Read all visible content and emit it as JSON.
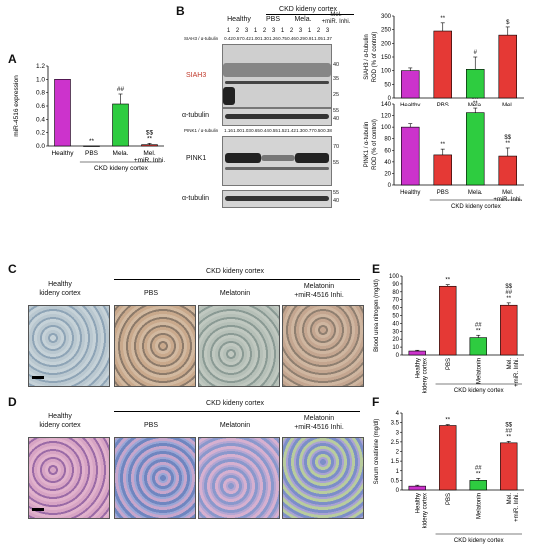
{
  "panel_labels": {
    "A": "A",
    "B": "B",
    "C": "C",
    "D": "D",
    "E": "E",
    "F": "F"
  },
  "chart_data": [
    {
      "id": "A",
      "type": "bar",
      "categories": [
        "Healthy",
        "PBS",
        "Mela.",
        "Mel.\n+miR. Inhi."
      ],
      "values": [
        1.0,
        0.0,
        0.63,
        0.02
      ],
      "errors": [
        0,
        0,
        0.15,
        0.02
      ],
      "colors": [
        "#cc33cc",
        "#e53935",
        "#2ecc40",
        "#e53935"
      ],
      "ylabel": "miR-4516 expression",
      "yticks": [
        "0.0",
        "0.2",
        "0.4",
        "0.6",
        "0.8",
        "1.0",
        "1.2"
      ],
      "ylim": [
        0,
        1.2
      ],
      "annotations": [
        "",
        "**",
        "##",
        "$$\n**"
      ],
      "group_label": "CKD kideny cortex"
    },
    {
      "id": "B1",
      "type": "bar",
      "categories": [
        "Healthy",
        "PBS",
        "Mela.",
        "Mel.\n+miR. Inhi."
      ],
      "values": [
        100,
        245,
        105,
        230
      ],
      "errors": [
        10,
        30,
        45,
        30
      ],
      "colors": [
        "#cc33cc",
        "#e53935",
        "#2ecc40",
        "#e53935"
      ],
      "ylabel": "SIAH3 / α-tubulin\nROD (% of control)",
      "yticks": [
        "0",
        "50",
        "100",
        "150",
        "200",
        "250",
        "300"
      ],
      "ylim": [
        0,
        300
      ],
      "annotations": [
        "",
        "**",
        "#",
        "$"
      ]
    },
    {
      "id": "B2",
      "type": "bar",
      "categories": [
        "Healthy",
        "PBS",
        "Mela.",
        "Mel.\n+miR. Inhi."
      ],
      "values": [
        100,
        52,
        125,
        50
      ],
      "errors": [
        6,
        10,
        8,
        14
      ],
      "colors": [
        "#cc33cc",
        "#e53935",
        "#2ecc40",
        "#e53935"
      ],
      "ylabel": "PINK1 / α-tubulin\nROD (% of control)",
      "yticks": [
        "0",
        "20",
        "40",
        "60",
        "80",
        "100",
        "120",
        "140"
      ],
      "ylim": [
        0,
        140
      ],
      "annotations": [
        "",
        "**",
        "##\n**",
        "$$\n**"
      ],
      "group_label": "CKD kideny cortex"
    },
    {
      "id": "E",
      "type": "bar",
      "categories": [
        "Healthy\nkideny cortex",
        "PBS",
        "Melatonin",
        "Mel.\n+miR. Inhi."
      ],
      "values": [
        5,
        87,
        22,
        63
      ],
      "errors": [
        1,
        2,
        3,
        3
      ],
      "colors": [
        "#cc33cc",
        "#e53935",
        "#2ecc40",
        "#e53935"
      ],
      "ylabel": "Blood urea nitrogen (mg/dl)",
      "yticks": [
        "0",
        "10",
        "20",
        "30",
        "40",
        "50",
        "60",
        "70",
        "80",
        "90",
        "100"
      ],
      "ylim": [
        0,
        100
      ],
      "annotations": [
        "",
        "**",
        "##\n**",
        "$$\n##\n**"
      ],
      "group_label": "CKD kideny cortex"
    },
    {
      "id": "F",
      "type": "bar",
      "categories": [
        "Healthy\nkideny cortex",
        "PBS",
        "Melatonin",
        "Mel.\n+miR. Inhi."
      ],
      "values": [
        0.2,
        3.35,
        0.5,
        2.45
      ],
      "errors": [
        0.05,
        0.05,
        0.1,
        0.08
      ],
      "colors": [
        "#cc33cc",
        "#e53935",
        "#2ecc40",
        "#e53935"
      ],
      "ylabel": "Serum creatinine (mg/dl)",
      "yticks": [
        "0",
        "0.5",
        "1",
        "1.5",
        "2",
        "2.5",
        "3",
        "3.5",
        "4"
      ],
      "ylim": [
        0,
        4
      ],
      "annotations": [
        "",
        "**",
        "##\n**",
        "$$\n##\n**"
      ],
      "group_label": "CKD kideny cortex"
    }
  ],
  "blot": {
    "header_groups": [
      "Healthy",
      "PBS",
      "Mela.",
      "Mel.\n+miR. Inhi."
    ],
    "header_title": "CKD kideny cortex",
    "lane_numbers": [
      "1",
      "2",
      "3",
      "1",
      "2",
      "3",
      "1",
      "2",
      "3",
      "1",
      "2",
      "3"
    ],
    "siah3_label": "SIAH3 / α-tubulin",
    "siah3_ratios": [
      "0.42",
      "0.57",
      "0.42",
      "1.00",
      "1.30",
      "1.26",
      "0.75",
      "0.46",
      "0.29",
      "0.91",
      "1.05",
      "1.37"
    ],
    "pink1_label": "PINK1 / α-tubulin",
    "pink1_ratios": [
      "1.16",
      "1.00",
      "1.03",
      "0.65",
      "0.44",
      "0.55",
      "1.52",
      "1.42",
      "1.30",
      "0.77",
      "0.50",
      "0.38"
    ],
    "rows": [
      "SIAH3",
      "α-tubulin",
      "PINK1",
      "α-tubulin"
    ],
    "mw_siah3": [
      "40",
      "35",
      "25"
    ],
    "mw_tub": [
      "55",
      "40"
    ],
    "mw_pink1": [
      "70",
      "55"
    ],
    "mw_tub2": [
      "55",
      "40"
    ]
  },
  "histology": {
    "group_left": "Healthy\nkideny cortex",
    "title": "CKD kideny cortex",
    "groups": [
      "PBS",
      "Melatonin",
      "Melatonin\n+miR-4516 Inhi."
    ]
  }
}
